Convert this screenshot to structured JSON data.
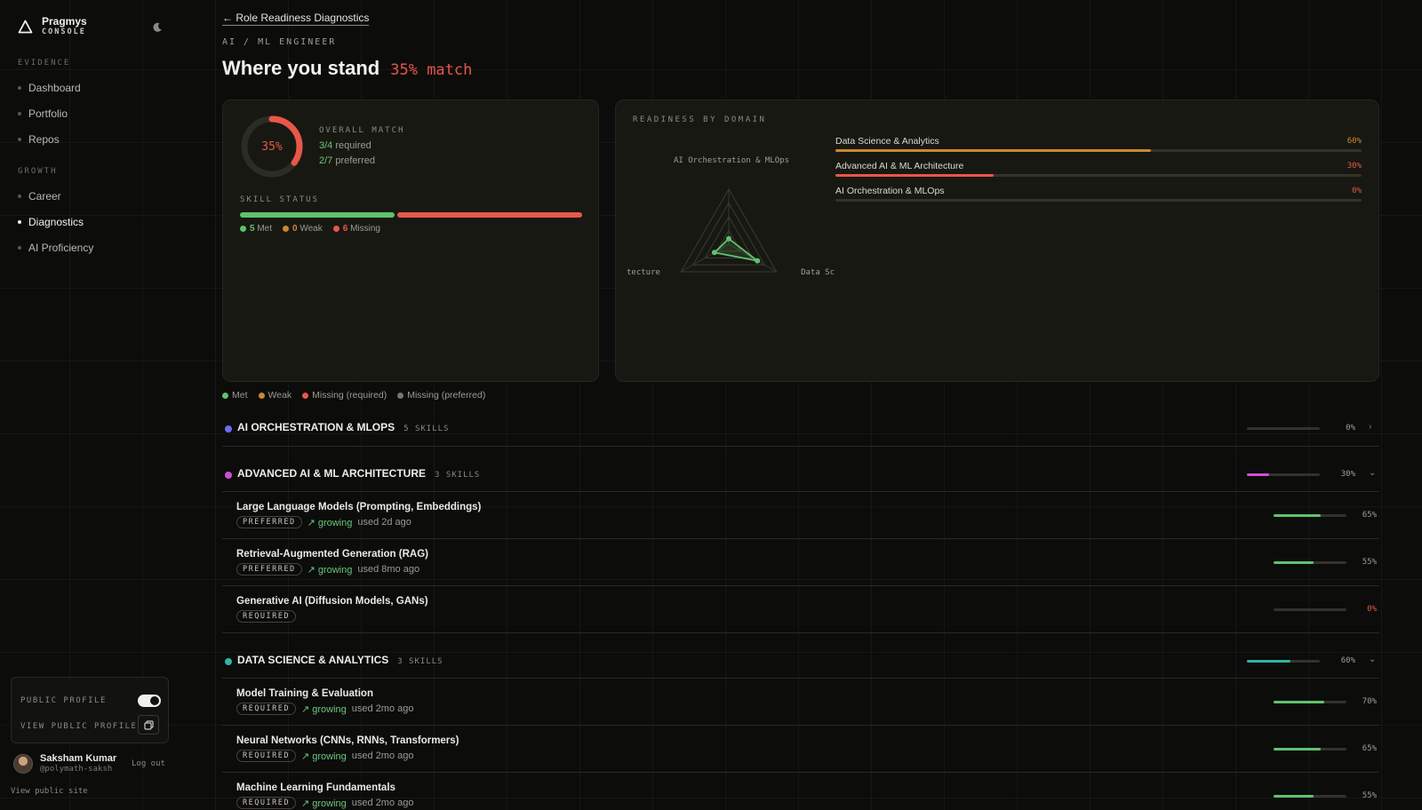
{
  "brand": {
    "name": "Pragmys",
    "sub": "CONSOLE"
  },
  "nav": {
    "sections": [
      {
        "label": "EVIDENCE",
        "items": [
          "Dashboard",
          "Portfolio",
          "Repos"
        ]
      },
      {
        "label": "GROWTH",
        "items": [
          "Career",
          "Diagnostics",
          "AI Proficiency"
        ]
      }
    ],
    "active": "Diagnostics"
  },
  "profile": {
    "public_label": "PUBLIC PROFILE",
    "public_enabled": true,
    "view_label": "VIEW PUBLIC PROFILE",
    "user_name": "Saksham Kumar",
    "user_handle": "@polymath-saksh",
    "logout": "Log out",
    "public_site": "View public site"
  },
  "header": {
    "back_link": "← Role Readiness Diagnostics",
    "role": "AI / ML ENGINEER",
    "title": "Where you stand",
    "match": "35% match"
  },
  "overall": {
    "label": "OVERALL MATCH",
    "percent": 35,
    "percent_text": "35%",
    "required_ratio": "3/4",
    "required_text": "required",
    "preferred_ratio": "2/7",
    "preferred_text": "preferred"
  },
  "skill_status": {
    "label": "SKILL STATUS",
    "met": 5,
    "weak": 0,
    "missing": 6,
    "met_label": "Met",
    "weak_label": "Weak",
    "missing_label": "Missing"
  },
  "readiness": {
    "label": "READINESS BY DOMAIN",
    "radar_labels": {
      "top": "AI Orchestration & MLOps",
      "left": "tecture",
      "right": "Data Sc"
    },
    "domains": [
      {
        "name": "Data Science & Analytics",
        "value": 60,
        "pct": "60%",
        "color": "#c9892f"
      },
      {
        "name": "Advanced AI & ML Architecture",
        "value": 30,
        "pct": "30%",
        "color": "#e8574a"
      },
      {
        "name": "AI Orchestration & MLOps",
        "value": 0,
        "pct": "0%",
        "color": "#e8574a"
      }
    ]
  },
  "legend": [
    {
      "label": "Met",
      "color": "#5fc26d"
    },
    {
      "label": "Weak",
      "color": "#c9892f"
    },
    {
      "label": "Missing (required)",
      "color": "#e8574a"
    },
    {
      "label": "Missing (preferred)",
      "color": "#77746c"
    }
  ],
  "groups": [
    {
      "title": "AI ORCHESTRATION & MLOPS",
      "count": "5 SKILLS",
      "value": 0,
      "pct": "0%",
      "color": "#6b6cf0",
      "expanded": false,
      "skills": []
    },
    {
      "title": "ADVANCED AI & ML ARCHITECTURE",
      "count": "3 SKILLS",
      "value": 30,
      "pct": "30%",
      "color": "#d04ed6",
      "expanded": true,
      "skills": [
        {
          "name": "Large Language Models (Prompting, Embeddings)",
          "badge": "PREFERRED",
          "trend": "↗ growing",
          "used": "used 2d ago",
          "value": 65,
          "pct": "65%"
        },
        {
          "name": "Retrieval-Augmented Generation (RAG)",
          "badge": "PREFERRED",
          "trend": "↗ growing",
          "used": "used 8mo ago",
          "value": 55,
          "pct": "55%"
        },
        {
          "name": "Generative AI (Diffusion Models, GANs)",
          "badge": "REQUIRED",
          "trend": "",
          "used": "",
          "value": 0,
          "pct": "0%"
        }
      ]
    },
    {
      "title": "DATA SCIENCE & ANALYTICS",
      "count": "3 SKILLS",
      "value": 60,
      "pct": "60%",
      "color": "#2fb4a3",
      "expanded": true,
      "skills": [
        {
          "name": "Model Training & Evaluation",
          "badge": "REQUIRED",
          "trend": "↗ growing",
          "used": "used 2mo ago",
          "value": 70,
          "pct": "70%"
        },
        {
          "name": "Neural Networks (CNNs, RNNs, Transformers)",
          "badge": "REQUIRED",
          "trend": "↗ growing",
          "used": "used 2mo ago",
          "value": 65,
          "pct": "65%"
        },
        {
          "name": "Machine Learning Fundamentals",
          "badge": "REQUIRED",
          "trend": "↗ growing",
          "used": "used 2mo ago",
          "value": 55,
          "pct": "55%"
        }
      ]
    }
  ],
  "colors": {
    "accent_red": "#e8574a",
    "green": "#5fc26d",
    "amber": "#c9892f"
  }
}
